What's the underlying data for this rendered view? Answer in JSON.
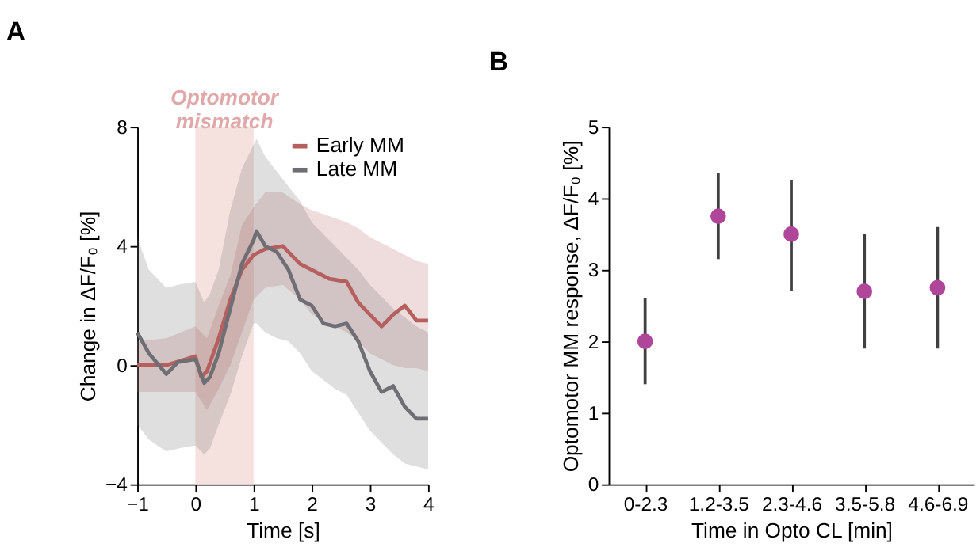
{
  "chart_data": [
    {
      "type": "line",
      "title": "A",
      "xlabel": "Time [s]",
      "ylabel": "Change in ΔF/F₀ [%]",
      "xlim": [
        -1,
        4
      ],
      "ylim": [
        -4,
        8
      ],
      "xticks": [
        -1,
        0,
        1,
        2,
        3,
        4
      ],
      "yticks": [
        -4,
        0,
        4,
        8
      ],
      "grid": false,
      "legend": "top right",
      "line_style": "solid",
      "bands": [
        {
          "axis": "x",
          "from": 0,
          "to": 1,
          "label": "Optomotor mismatch",
          "color": "#f2d9d4"
        }
      ],
      "series": [
        {
          "name": "Early MM",
          "color": "#b5605e",
          "x": [
            -1,
            -0.5,
            0,
            0.1,
            0.2,
            0.4,
            0.6,
            0.8,
            1.0,
            1.2,
            1.5,
            1.8,
            2.0,
            2.3,
            2.6,
            2.8,
            3.0,
            3.2,
            3.4,
            3.6,
            3.8,
            4.0
          ],
          "values": [
            0,
            0,
            0.3,
            -0.4,
            -0.2,
            0.9,
            2.2,
            3.2,
            3.7,
            3.9,
            4.0,
            3.4,
            3.2,
            2.9,
            2.8,
            2.1,
            1.7,
            1.3,
            1.7,
            2.0,
            1.5,
            1.5
          ],
          "upper": [
            0.8,
            0.9,
            1.3,
            1.1,
            0.9,
            2.0,
            3.0,
            4.7,
            5.3,
            5.8,
            5.8,
            5.4,
            5.2,
            5.0,
            4.8,
            4.6,
            4.3,
            4.1,
            3.9,
            3.7,
            3.5,
            3.4
          ],
          "lower": [
            -0.9,
            -0.9,
            -0.9,
            -1.2,
            -1.5,
            -0.8,
            0.0,
            1.1,
            2.2,
            2.6,
            2.7,
            2.2,
            1.7,
            1.4,
            1.1,
            0.8,
            0.4,
            0.2,
            0.0,
            -0.1,
            -0.1,
            -0.2
          ]
        },
        {
          "name": "Late MM",
          "color": "#6e6e74",
          "x": [
            -1,
            -0.8,
            -0.5,
            -0.3,
            0,
            0.15,
            0.25,
            0.4,
            0.6,
            0.8,
            1.0,
            1.05,
            1.2,
            1.4,
            1.6,
            1.8,
            2.0,
            2.2,
            2.4,
            2.6,
            2.8,
            3.0,
            3.2,
            3.4,
            3.6,
            3.8,
            4.0
          ],
          "values": [
            1.1,
            0.4,
            -0.3,
            0.1,
            0.2,
            -0.6,
            -0.4,
            0.4,
            1.9,
            3.4,
            4.2,
            4.5,
            4.0,
            3.8,
            3.2,
            2.2,
            2.0,
            1.4,
            1.3,
            1.4,
            0.8,
            -0.2,
            -0.9,
            -0.7,
            -1.4,
            -1.8,
            -1.8
          ],
          "upper": [
            4.3,
            3.2,
            2.6,
            2.7,
            2.8,
            2.1,
            2.4,
            3.2,
            5.2,
            6.6,
            7.4,
            7.6,
            7.0,
            6.5,
            6.0,
            5.5,
            4.8,
            4.4,
            4.0,
            3.6,
            3.2,
            2.7,
            2.3,
            1.9,
            1.6,
            1.3,
            1.1
          ],
          "lower": [
            -2.0,
            -2.5,
            -2.9,
            -2.8,
            -2.7,
            -3.0,
            -2.8,
            -2.0,
            -1.0,
            0.3,
            1.4,
            1.4,
            1.1,
            0.9,
            0.8,
            0.4,
            -0.2,
            -0.5,
            -0.8,
            -1.0,
            -1.6,
            -2.2,
            -2.6,
            -3.0,
            -3.3,
            -3.4,
            -3.5
          ]
        }
      ]
    },
    {
      "type": "scatter",
      "title": "B",
      "xlabel": "Time in Opto CL [min]",
      "ylabel": "Optomotor MM response, ΔF/F₀ [%]",
      "categories": [
        "0-2.3",
        "1.2-3.5",
        "2.3-4.6",
        "3.5-5.8",
        "4.6-6.9"
      ],
      "ylim": [
        0,
        5
      ],
      "yticks": [
        0,
        1,
        2,
        3,
        4,
        5
      ],
      "grid": false,
      "marker": "circle",
      "series": [
        {
          "color": "#b0469a",
          "values": [
            2.0,
            3.75,
            3.5,
            2.7,
            2.75
          ],
          "errors": [
            [
              1.4,
              2.6
            ],
            [
              3.15,
              4.35
            ],
            [
              2.7,
              4.25
            ],
            [
              1.9,
              3.5
            ],
            [
              1.9,
              3.6
            ]
          ]
        }
      ]
    }
  ]
}
